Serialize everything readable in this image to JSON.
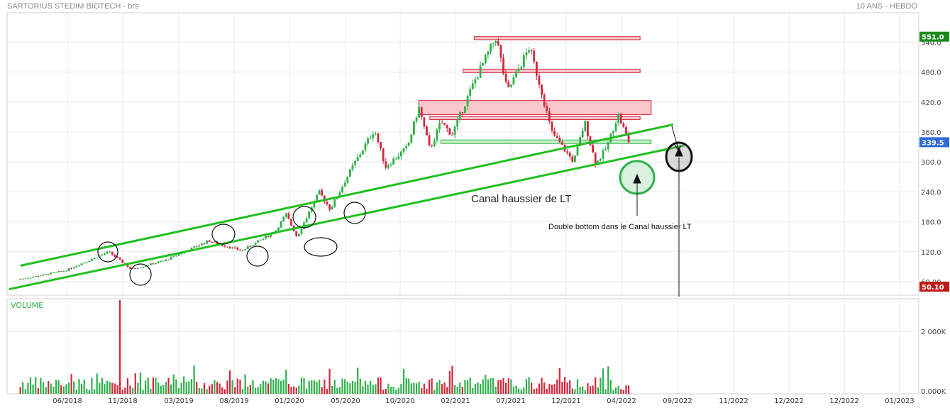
{
  "header": {
    "title": "SARTORIUS STEDIM BIOTECH - brs",
    "period": "10 ANS - HEBDO"
  },
  "colors": {
    "up": "#2db14a",
    "down": "#d2263c",
    "channel": "#1fc01f",
    "resistance_fill": "#f9c8cd",
    "resistance_stroke": "#d2263c",
    "support_fill": "#c9f0c9",
    "support_stroke": "#2db14a",
    "last_tag": "#2f6bd8",
    "high_tag": "#1a8a1a",
    "low_tag": "#c01818",
    "volume_label": "#2db14a"
  },
  "chart_data": {
    "type": "candlestick",
    "title": "SARTORIUS STEDIM BIOTECH - brs",
    "timeframe": "10 ANS - HEBDO",
    "price_axis_ticks": [
      "60.00",
      "120.0",
      "180.0",
      "240.0",
      "300.0",
      "360.0",
      "420.0",
      "480.0",
      "540.0"
    ],
    "volume_axis_ticks": [
      "2 000K",
      "0.000K"
    ],
    "volume_label": "VOLUME",
    "x_tick_labels": [
      "06/2018",
      "11/2018",
      "03/2019",
      "08/2019",
      "01/2020",
      "05/2020",
      "10/2020",
      "02/2021",
      "07/2021",
      "12/2021",
      "04/2022",
      "09/2022",
      "11/2022",
      "12/2022",
      "12/2022",
      "01/2023"
    ],
    "price_tags": {
      "high": "551.0",
      "last": "339.5",
      "low": "50.10"
    },
    "annotations": {
      "channel": "Canal haussier de LT",
      "double_bottom": "Double bottom dans le Canal haussier LT"
    },
    "key_price_path": [
      {
        "date": "2018-02",
        "price": 65
      },
      {
        "date": "2018-06",
        "price": 82
      },
      {
        "date": "2018-10",
        "price": 120
      },
      {
        "date": "2018-12",
        "price": 85
      },
      {
        "date": "2019-03",
        "price": 102
      },
      {
        "date": "2019-07",
        "price": 142
      },
      {
        "date": "2019-10",
        "price": 122
      },
      {
        "date": "2020-01",
        "price": 160
      },
      {
        "date": "2020-02",
        "price": 195
      },
      {
        "date": "2020-03",
        "price": 150
      },
      {
        "date": "2020-05",
        "price": 240
      },
      {
        "date": "2020-06",
        "price": 205
      },
      {
        "date": "2020-08",
        "price": 290
      },
      {
        "date": "2020-10",
        "price": 365
      },
      {
        "date": "2020-11",
        "price": 290
      },
      {
        "date": "2021-01",
        "price": 330
      },
      {
        "date": "2021-02",
        "price": 410
      },
      {
        "date": "2021-03",
        "price": 325
      },
      {
        "date": "2021-04",
        "price": 380
      },
      {
        "date": "2021-05",
        "price": 355
      },
      {
        "date": "2021-07",
        "price": 460
      },
      {
        "date": "2021-09",
        "price": 551
      },
      {
        "date": "2021-10",
        "price": 440
      },
      {
        "date": "2021-12",
        "price": 530
      },
      {
        "date": "2022-01",
        "price": 450
      },
      {
        "date": "2022-02",
        "price": 360
      },
      {
        "date": "2022-04",
        "price": 300
      },
      {
        "date": "2022-05",
        "price": 380
      },
      {
        "date": "2022-06",
        "price": 295
      },
      {
        "date": "2022-07",
        "price": 330
      },
      {
        "date": "2022-08",
        "price": 395
      },
      {
        "date": "2022-09",
        "price": 339.5
      }
    ],
    "resistance_zones": [
      {
        "from": "2021-07",
        "to": "2022-10",
        "low": 545,
        "high": 551
      },
      {
        "from": "2021-06",
        "to": "2022-10",
        "low": 479,
        "high": 486
      },
      {
        "from": "2021-02",
        "to": "2022-11",
        "low": 395,
        "high": 423
      },
      {
        "from": "2021-03",
        "to": "2022-10",
        "low": 385,
        "high": 391
      }
    ],
    "support_zones": [
      {
        "from": "2021-04",
        "to": "2022-11",
        "low": 337,
        "high": 344
      }
    ],
    "trendlines": [
      {
        "start": {
          "date": "2018-02",
          "price": 92
        },
        "end": {
          "date": "2023-01",
          "price": 375
        }
      },
      {
        "start": {
          "date": "2018-01",
          "price": 45
        },
        "end": {
          "date": "2023-02",
          "price": 333
        }
      }
    ],
    "volume_scale_max": 2000,
    "volume_spike": {
      "date": "2018-11",
      "value": 3000
    }
  }
}
